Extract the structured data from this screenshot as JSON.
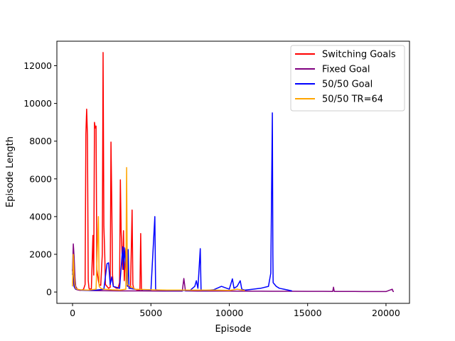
{
  "chart_data": {
    "type": "line",
    "title": "",
    "xlabel": "Episode",
    "ylabel": "Episode Length",
    "xlim": [
      -1000,
      21500
    ],
    "ylim": [
      -600,
      13300
    ],
    "xticks": [
      0,
      5000,
      10000,
      15000,
      20000
    ],
    "xtick_labels": [
      "0",
      "5000",
      "10000",
      "15000",
      "20000"
    ],
    "yticks": [
      0,
      2000,
      4000,
      6000,
      8000,
      10000,
      12000
    ],
    "ytick_labels": [
      "0",
      "2000",
      "4000",
      "6000",
      "8000",
      "10000",
      "12000"
    ],
    "grid": false,
    "legend_position": "top-right",
    "series": [
      {
        "name": "Switching Goals",
        "color": "#ff0000",
        "x": [
          0,
          50,
          100,
          150,
          200,
          300,
          400,
          500,
          600,
          700,
          800,
          850,
          900,
          950,
          1000,
          1050,
          1100,
          1200,
          1300,
          1350,
          1400,
          1450,
          1500,
          1550,
          1600,
          1650,
          1700,
          1800,
          1900,
          1950,
          2000,
          2050,
          2100,
          2200,
          2300,
          2400,
          2450,
          2500,
          2550,
          2600,
          2700,
          2800,
          2900,
          3000,
          3050,
          3100,
          3200,
          3250,
          3300,
          3400,
          3500,
          3600,
          3700,
          3800,
          3850,
          3900,
          4000,
          4100,
          4200,
          4300,
          4350,
          4400,
          4500
        ],
        "y": [
          1200,
          600,
          300,
          200,
          150,
          120,
          100,
          90,
          110,
          150,
          400,
          8400,
          9700,
          8300,
          600,
          200,
          150,
          180,
          3000,
          900,
          9000,
          8700,
          8800,
          1200,
          900,
          600,
          400,
          350,
          2000,
          12700,
          3500,
          2200,
          400,
          300,
          200,
          250,
          7950,
          4800,
          900,
          300,
          250,
          200,
          200,
          500,
          5950,
          3200,
          1200,
          3250,
          600,
          2300,
          350,
          300,
          250,
          4350,
          400,
          200,
          150,
          120,
          100,
          90,
          3100,
          100,
          80
        ]
      },
      {
        "name": "Fixed Goal",
        "color": "#800080",
        "x": [
          0,
          50,
          100,
          150,
          200,
          300,
          500,
          1000,
          2000,
          3000,
          4000,
          5000,
          6000,
          7000,
          7100,
          7200,
          8000,
          9000,
          10000,
          11000,
          12000,
          13000,
          14000,
          15000,
          16000,
          16600,
          16650,
          16700,
          17000,
          18000,
          19000,
          20000,
          20400,
          20450,
          20500
        ],
        "y": [
          1100,
          2550,
          1900,
          800,
          300,
          150,
          100,
          80,
          70,
          60,
          60,
          55,
          50,
          50,
          720,
          60,
          50,
          50,
          50,
          45,
          45,
          40,
          40,
          35,
          35,
          30,
          260,
          30,
          30,
          30,
          25,
          25,
          150,
          30,
          25
        ]
      },
      {
        "name": "50/50 Goal",
        "color": "#0000ff",
        "x": [
          0,
          50,
          100,
          200,
          500,
          1000,
          1500,
          2000,
          2200,
          2300,
          2400,
          2500,
          2600,
          3000,
          3200,
          3250,
          3300,
          3500,
          3550,
          3600,
          4000,
          4500,
          5000,
          5250,
          5300,
          5500,
          6000,
          6500,
          7000,
          7500,
          7800,
          7900,
          8000,
          8150,
          8200,
          8500,
          9000,
          9500,
          10000,
          10200,
          10300,
          10500,
          10700,
          10800,
          11000,
          11500,
          12000,
          12500,
          12650,
          12750,
          12780,
          12800,
          12900,
          13000,
          13200,
          13500,
          14000
        ],
        "y": [
          900,
          1800,
          300,
          150,
          100,
          90,
          100,
          150,
          1500,
          1550,
          400,
          800,
          300,
          200,
          2400,
          1200,
          2350,
          300,
          2250,
          200,
          150,
          120,
          100,
          4000,
          120,
          100,
          90,
          80,
          80,
          90,
          300,
          600,
          200,
          2300,
          100,
          90,
          120,
          300,
          150,
          700,
          200,
          300,
          600,
          150,
          100,
          150,
          200,
          300,
          1000,
          9500,
          2000,
          500,
          400,
          300,
          200,
          150,
          60
        ]
      },
      {
        "name": "50/50 TR=64",
        "color": "#ffa500",
        "x": [
          0,
          50,
          100,
          150,
          200,
          300,
          500,
          1000,
          1500,
          1650,
          1700,
          1800,
          2000,
          2500,
          3000,
          3400,
          3450,
          3500,
          4000,
          5000,
          6000,
          7000,
          8000,
          9000,
          10000,
          10500,
          11000
        ],
        "y": [
          300,
          2000,
          900,
          400,
          200,
          150,
          120,
          100,
          150,
          4000,
          300,
          200,
          150,
          120,
          100,
          150,
          6600,
          400,
          150,
          120,
          100,
          100,
          100,
          100,
          90,
          150,
          80
        ]
      }
    ]
  }
}
